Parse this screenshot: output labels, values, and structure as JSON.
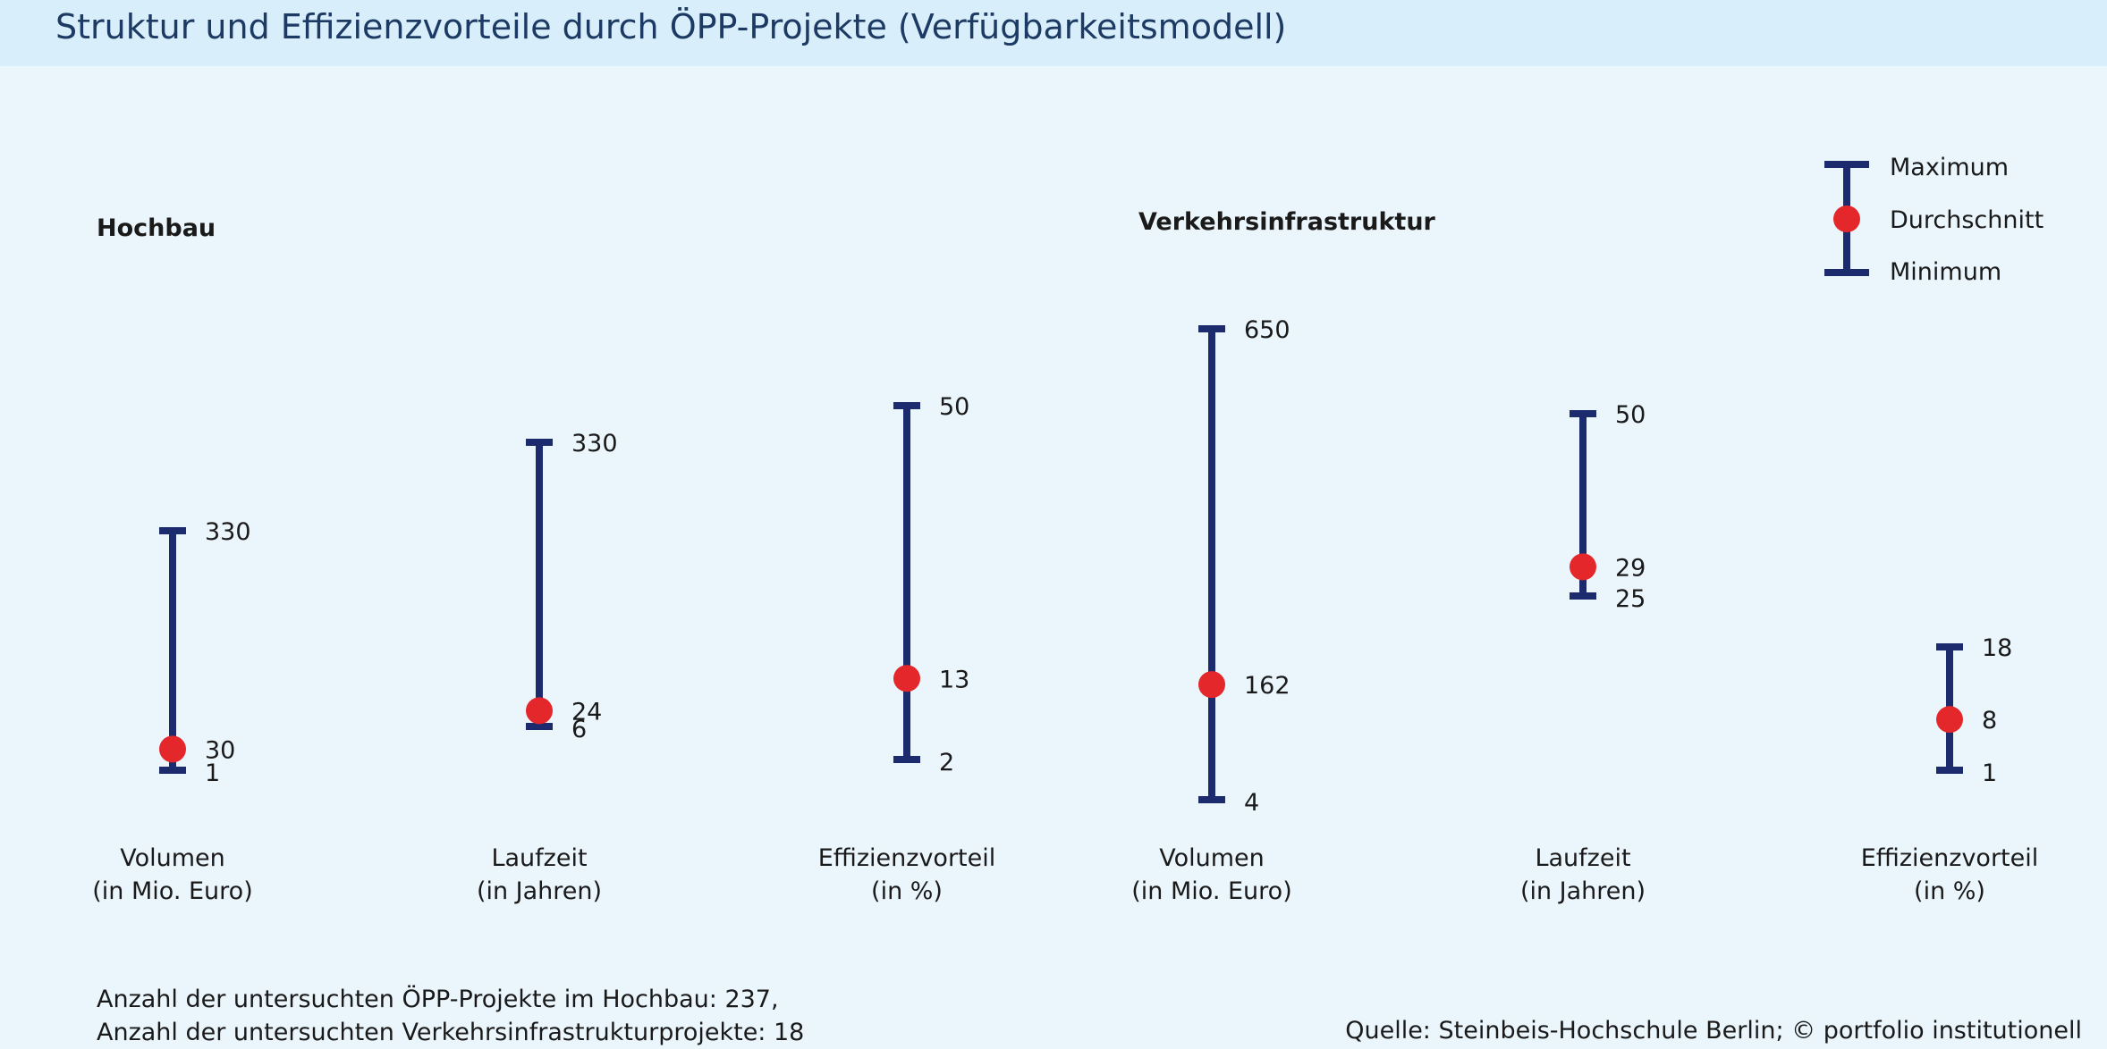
{
  "header": {
    "title": "Struktur und Effizienzvorteile durch ÖPP-Projekte (Verfügbarkeitsmodell)"
  },
  "colors": {
    "navy": "#1c2a6e",
    "red": "#e4272b",
    "title_text": "#1c3a63",
    "background": "#eaf5fc",
    "title_band": "#d8eefa"
  },
  "legend": {
    "max": "Maximum",
    "avg": "Durchschnitt",
    "min": "Minimum"
  },
  "chart_data": {
    "type": "range-dot",
    "legend_placement": "top-right",
    "groups": [
      {
        "name": "Hochbau",
        "metrics": [
          {
            "label_line1": "Volumen",
            "label_line2": "(in Mio. Euro)",
            "min": 1,
            "avg": 30,
            "max": 330
          },
          {
            "label_line1": "Laufzeit",
            "label_line2": "(in Jahren)",
            "min": 6,
            "avg": 24,
            "max": 330
          },
          {
            "label_line1": "Effizienzvorteil",
            "label_line2": "(in %)",
            "min": 2,
            "avg": 13,
            "max": 50
          }
        ]
      },
      {
        "name": "Verkehrsinfrastruktur",
        "metrics": [
          {
            "label_line1": "Volumen",
            "label_line2": "(in Mio. Euro)",
            "min": 4,
            "avg": 162,
            "max": 650
          },
          {
            "label_line1": "Laufzeit",
            "label_line2": "(in Jahren)",
            "min": 25,
            "avg": 29,
            "max": 50
          },
          {
            "label_line1": "Effizienzvorteil",
            "label_line2": "(in %)",
            "min": 1,
            "avg": 8,
            "max": 18
          }
        ]
      }
    ]
  },
  "footer": {
    "note_line1": "Anzahl der untersuchten ÖPP-Projekte im Hochbau: 237,",
    "note_line2": "Anzahl der untersuchten Verkehrsinfrastrukturprojekte: 18",
    "source": "Quelle: Steinbeis-Hochschule Berlin; © portfolio institutionell"
  }
}
